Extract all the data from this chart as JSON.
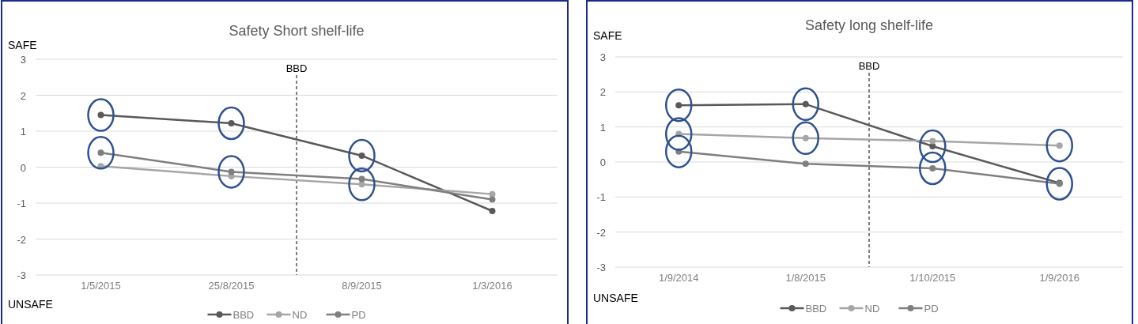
{
  "chart_data": [
    {
      "type": "line",
      "title": "Safety  Short shelf-life",
      "categories": [
        "1/5/2015",
        "25/8/2015",
        "8/9/2015",
        "1/3/2016"
      ],
      "series": [
        {
          "name": "BBD",
          "color": "#595959",
          "values": [
            1.45,
            1.22,
            0.32,
            -1.22
          ]
        },
        {
          "name": "ND",
          "color": "#a6a6a6",
          "values": [
            0.03,
            -0.25,
            -0.48,
            -0.75
          ]
        },
        {
          "name": "PD",
          "color": "#7f7f7f",
          "values": [
            0.4,
            -0.13,
            -0.33,
            -0.9
          ]
        }
      ],
      "ylim": [
        -3,
        3
      ],
      "yticks": [
        -3,
        -2,
        -1,
        0,
        1,
        2,
        3
      ],
      "grid": "y",
      "legend": "bottom",
      "marker": "circle",
      "annotations": [
        "SAFE",
        "UNSAFE",
        "BBD"
      ]
    },
    {
      "type": "line",
      "title": "Safety long shelf-life",
      "categories": [
        "1/9/2014",
        "1/8/2015",
        "1/10/2015",
        "1/9/2016"
      ],
      "series": [
        {
          "name": "BBD",
          "color": "#595959",
          "values": [
            1.62,
            1.65,
            0.45,
            -0.6
          ]
        },
        {
          "name": "ND",
          "color": "#a6a6a6",
          "values": [
            0.8,
            0.68,
            0.6,
            0.47
          ]
        },
        {
          "name": "PD",
          "color": "#7f7f7f",
          "values": [
            0.3,
            -0.05,
            -0.18,
            -0.62
          ]
        }
      ],
      "ylim": [
        -3,
        3
      ],
      "yticks": [
        -3,
        -2,
        -1,
        0,
        1,
        2,
        3
      ],
      "grid": "y",
      "legend": "bottom",
      "marker": "circle",
      "annotations": [
        "SAFE",
        "UNSAFE",
        "BBD"
      ]
    }
  ]
}
